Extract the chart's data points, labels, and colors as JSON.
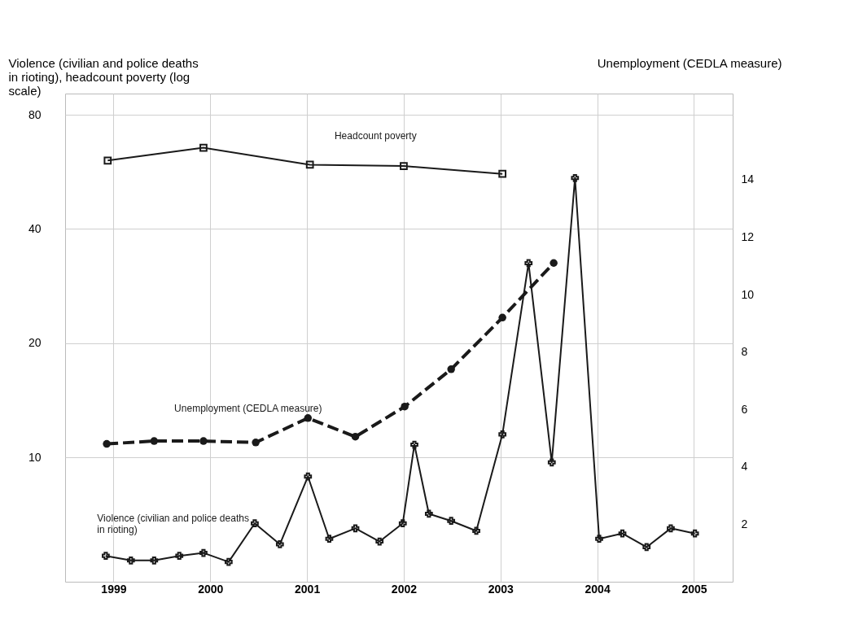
{
  "chart_data": {
    "type": "line",
    "xlabel": null,
    "ylabel": "Violence (civilian and police deaths in rioting), headcount poverty (log scale)",
    "y2label": "Unemployment (CEDLA measure)",
    "xlim": [
      1998.5,
      2005.4
    ],
    "xticks": [
      1999,
      2000,
      2001,
      2002,
      2003,
      2004,
      2005
    ],
    "ylim": [
      4.7,
      91
    ],
    "yticks": [
      10,
      20,
      40,
      80
    ],
    "log": "y",
    "y2lim": [
      0,
      17
    ],
    "y2ticks": [
      2,
      4,
      6,
      8,
      10,
      12,
      14
    ],
    "grid": true,
    "series": [
      {
        "name": "Headcount poverty",
        "color": "#1a1a1a",
        "marker": "square",
        "line_style": "solid",
        "x": [
          1998.94,
          1999.93,
          2001.03,
          2002.0,
          2003.02
        ],
        "values": [
          60.6,
          65.5,
          59.1,
          58.6,
          55.9
        ]
      },
      {
        "name": "Unemployment (CEDLA measure)",
        "color": "#1a1a1a",
        "marker": "circle",
        "line_style": "dashed",
        "axis": "y2",
        "x": [
          1998.93,
          1999.42,
          1999.93,
          2000.47,
          2001.01,
          2001.5,
          2002.01,
          2002.49,
          2003.02,
          2003.55
        ],
        "values": [
          4.8,
          4.9,
          4.9,
          4.85,
          5.7,
          5.05,
          6.1,
          7.4,
          9.2,
          11.1
        ]
      },
      {
        "name": "Violence (civilian and police deaths in rioting)",
        "color": "#1a1a1a",
        "marker": "cross",
        "line_style": "solid",
        "x": [
          1998.92,
          1999.18,
          1999.42,
          1999.68,
          1999.93,
          2000.19,
          2000.46,
          2000.72,
          2001.01,
          2001.23,
          2001.5,
          2001.75,
          2001.99,
          2002.11,
          2002.26,
          2002.49,
          2002.75,
          2003.02,
          2003.29,
          2003.53,
          2003.77,
          2004.02,
          2004.26,
          2004.51,
          2004.76,
          2005.01
        ],
        "values": [
          5.5,
          5.35,
          5.35,
          5.5,
          5.6,
          5.3,
          6.7,
          5.9,
          8.9,
          6.1,
          6.5,
          6.0,
          6.7,
          10.8,
          7.1,
          6.8,
          6.4,
          11.5,
          32.5,
          9.7,
          54.5,
          6.1,
          6.3,
          5.8,
          6.5,
          6.3
        ]
      }
    ]
  }
}
